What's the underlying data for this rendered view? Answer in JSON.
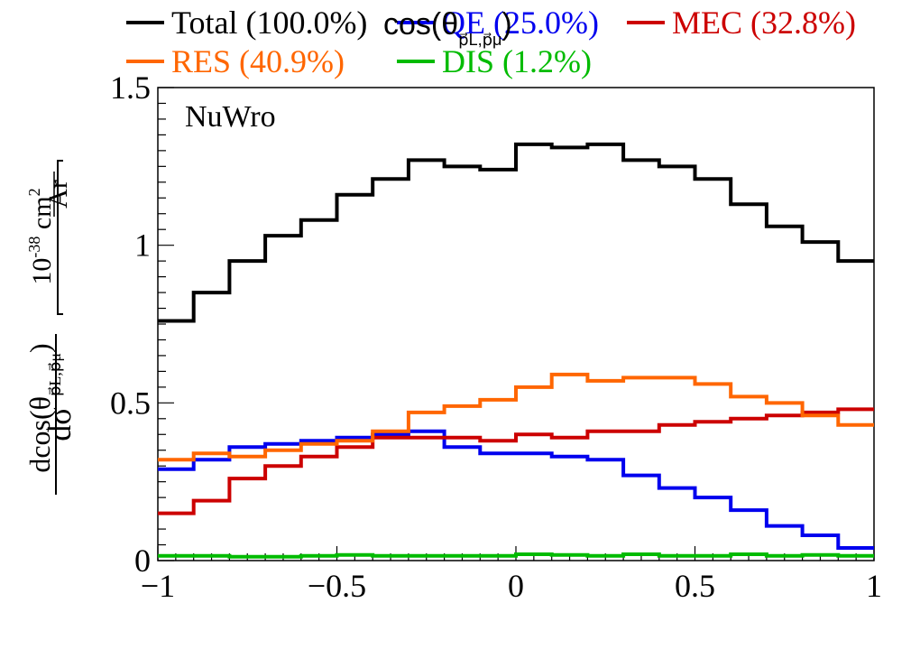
{
  "chart_data": {
    "type": "line",
    "annotation": "NuWro",
    "xlabel": "cos(θ",
    "xlabel_sub": "p⃗L,p⃗μ",
    "xlabel_close": ")",
    "ylabel": {
      "numerator": "dσ",
      "denominator": "dcos(θ",
      "denominator_sub": "p⃗L,p⃗μ",
      "denominator_close": ")",
      "units_prefix": "10",
      "units_exp": "-38",
      "units_num": "cm",
      "units_num_exp": "2",
      "units_den": "Ar"
    },
    "xlim": [
      -1,
      1
    ],
    "ylim": [
      0,
      1.5
    ],
    "xticks": [
      -1,
      -0.5,
      0,
      0.5,
      1
    ],
    "xtick_labels": [
      "−1",
      "−0.5",
      "0",
      "0.5",
      "1"
    ],
    "yticks": [
      0,
      0.5,
      1,
      1.5
    ],
    "ytick_labels": [
      "0",
      "0.5",
      "1",
      "1.5"
    ],
    "bin_edges": [
      -1,
      -0.9,
      -0.8,
      -0.7,
      -0.6,
      -0.5,
      -0.4,
      -0.3,
      -0.2,
      -0.1,
      0,
      0.1,
      0.2,
      0.3,
      0.4,
      0.5,
      0.6,
      0.7,
      0.8,
      0.9,
      1.0
    ],
    "series": [
      {
        "name": "Total (100.0%)",
        "color": "#000000",
        "values": [
          0.76,
          0.85,
          0.95,
          1.03,
          1.08,
          1.16,
          1.21,
          1.27,
          1.25,
          1.24,
          1.32,
          1.31,
          1.32,
          1.27,
          1.25,
          1.21,
          1.13,
          1.06,
          1.01,
          0.95
        ]
      },
      {
        "name": "QE (25.0%)",
        "color": "#0000ee",
        "values": [
          0.29,
          0.32,
          0.36,
          0.37,
          0.38,
          0.39,
          0.4,
          0.41,
          0.36,
          0.34,
          0.34,
          0.33,
          0.32,
          0.27,
          0.23,
          0.2,
          0.16,
          0.11,
          0.08,
          0.04
        ]
      },
      {
        "name": "MEC (32.8%)",
        "color": "#cc0000",
        "values": [
          0.15,
          0.19,
          0.26,
          0.3,
          0.33,
          0.36,
          0.39,
          0.39,
          0.39,
          0.38,
          0.4,
          0.39,
          0.41,
          0.41,
          0.43,
          0.44,
          0.45,
          0.46,
          0.47,
          0.48
        ]
      },
      {
        "name": "RES (40.9%)",
        "color": "#ff6600",
        "values": [
          0.32,
          0.34,
          0.33,
          0.35,
          0.37,
          0.38,
          0.41,
          0.47,
          0.49,
          0.51,
          0.55,
          0.59,
          0.57,
          0.58,
          0.58,
          0.56,
          0.52,
          0.5,
          0.46,
          0.43
        ]
      },
      {
        "name": "DIS (1.2%)",
        "color": "#00bb00",
        "values": [
          0.015,
          0.015,
          0.012,
          0.012,
          0.015,
          0.018,
          0.015,
          0.015,
          0.015,
          0.015,
          0.02,
          0.018,
          0.015,
          0.02,
          0.015,
          0.015,
          0.02,
          0.015,
          0.018,
          0.015
        ]
      }
    ]
  }
}
